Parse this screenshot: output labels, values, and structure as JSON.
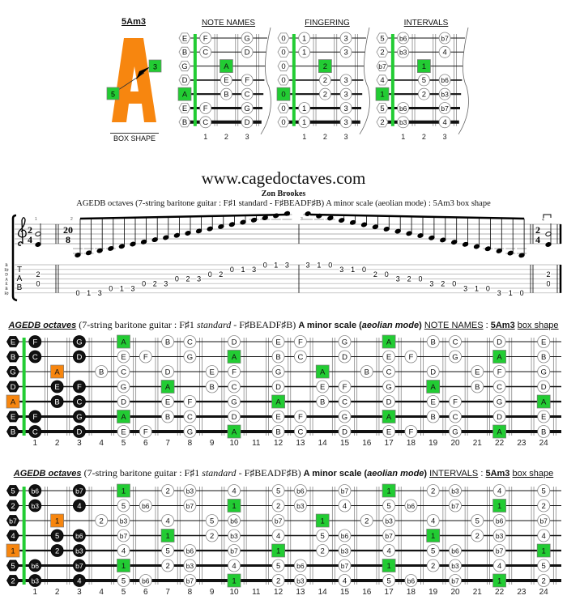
{
  "header": {
    "shape_name": "5Am3",
    "shape_letter": "A",
    "box_shape_label": "BOX SHAPE",
    "arrow_from": "5",
    "arrow_to": "3",
    "small_titles": [
      "NOTE NAMES",
      "FINGERING",
      "INTERVALS"
    ],
    "small_fret_numbers": [
      "1",
      "2",
      "3"
    ]
  },
  "site": {
    "url": "www.cagedoctaves.com",
    "author": "Zon Brookes",
    "subtitle": "AGEDB octaves (7-string baritone guitar : F♯1 standard - F♯BEADF♯B) A minor scale (aeolian mode) : 5Am3 box shape"
  },
  "colors": {
    "root_green": "#22cc33",
    "box_root_orange": "#f7860f",
    "box_note_black": "#111111",
    "nut_green": "#22cc33"
  },
  "tab": {
    "tuning_labels": [
      "B",
      "F♯",
      "D",
      "A",
      "E",
      "B",
      "F♯"
    ],
    "tab_letters": [
      "T",
      "A",
      "B"
    ],
    "time_signatures": {
      "m1": [
        "2",
        "4"
      ],
      "m2": [
        "20",
        "8"
      ],
      "m4": [
        "2",
        "4"
      ]
    },
    "measure_numbers": [
      "1",
      "2",
      "3",
      "4"
    ],
    "measures": [
      [
        [
          3,
          2
        ],
        [
          5,
          0
        ]
      ],
      [
        [
          7,
          0
        ],
        [
          7,
          1
        ],
        [
          7,
          3
        ],
        [
          6,
          0
        ],
        [
          6,
          1
        ],
        [
          6,
          3
        ],
        [
          5,
          0
        ],
        [
          5,
          2
        ],
        [
          5,
          3
        ],
        [
          4,
          0
        ],
        [
          4,
          2
        ],
        [
          4,
          3
        ],
        [
          3,
          0
        ],
        [
          3,
          2
        ],
        [
          2,
          0
        ],
        [
          2,
          1
        ],
        [
          2,
          3
        ],
        [
          1,
          0
        ],
        [
          1,
          1
        ],
        [
          1,
          3
        ]
      ],
      [
        [
          1,
          3
        ],
        [
          1,
          1
        ],
        [
          1,
          0
        ],
        [
          2,
          3
        ],
        [
          2,
          1
        ],
        [
          2,
          0
        ],
        [
          3,
          2
        ],
        [
          3,
          0
        ],
        [
          4,
          3
        ],
        [
          4,
          2
        ],
        [
          4,
          0
        ],
        [
          5,
          3
        ],
        [
          5,
          2
        ],
        [
          5,
          0
        ],
        [
          6,
          3
        ],
        [
          6,
          1
        ],
        [
          6,
          0
        ],
        [
          7,
          3
        ],
        [
          7,
          1
        ],
        [
          7,
          0
        ]
      ],
      [
        [
          3,
          2
        ],
        [
          5,
          0
        ]
      ]
    ]
  },
  "title_parts": {
    "name": "AGEDB octaves",
    "guitar": "(7-string baritone guitar : F♯1",
    "standard": "standard",
    "tuning": "- F♯BEADF♯B)",
    "scale": "A minor scale (",
    "mode": "aeolian mode",
    "close": ")",
    "sep": ":",
    "shape": "5Am3",
    "box": "box shape"
  },
  "fretboard": {
    "fret_numbers": [
      "1",
      "2",
      "3",
      "4",
      "5",
      "6",
      "7",
      "8",
      "9",
      "10",
      "11",
      "12",
      "13",
      "14",
      "15",
      "16",
      "17",
      "18",
      "19",
      "20",
      "21",
      "22",
      "23",
      "24"
    ],
    "strings": [
      {
        "frets": [
          0,
          1,
          3,
          5,
          7,
          8,
          10,
          12,
          13,
          15,
          17,
          19,
          20,
          22,
          24
        ],
        "styles": "bbbgnnnnnngnnnn"
      },
      {
        "frets": [
          0,
          1,
          3,
          5,
          6,
          8,
          10,
          12,
          13,
          15,
          17,
          18,
          20,
          22,
          24
        ],
        "styles": "bbbnnngnnnnnngn"
      },
      {
        "frets": [
          0,
          2,
          4,
          5,
          7,
          9,
          10,
          12,
          14,
          16,
          17,
          19,
          21,
          22,
          24
        ],
        "styles": "bonnnnnngnnnnnn"
      },
      {
        "frets": [
          0,
          2,
          3,
          5,
          7,
          9,
          10,
          12,
          14,
          15,
          17,
          19,
          21,
          22,
          24
        ],
        "styles": "bbbngnnnnnngnnn"
      },
      {
        "frets": [
          0,
          2,
          3,
          5,
          7,
          8,
          10,
          12,
          14,
          15,
          17,
          19,
          20,
          22,
          24
        ],
        "styles": "obbnnnngnnnnnng"
      },
      {
        "frets": [
          0,
          1,
          3,
          5,
          7,
          8,
          10,
          12,
          13,
          15,
          17,
          19,
          20,
          22,
          24
        ],
        "styles": "bbbgnnnnnngnnnn"
      },
      {
        "frets": [
          0,
          1,
          3,
          5,
          6,
          8,
          10,
          12,
          13,
          15,
          17,
          18,
          20,
          22,
          24
        ],
        "styles": "bbbnnngnnnnnngn"
      }
    ]
  },
  "note_names_board": {
    "view": "NOTE NAMES",
    "labels": [
      [
        "E",
        "F",
        "G",
        "A",
        "B",
        "C",
        "D",
        "E",
        "F",
        "G",
        "A",
        "B",
        "C",
        "D",
        "E"
      ],
      [
        "B",
        "C",
        "D",
        "E",
        "F",
        "G",
        "A",
        "B",
        "C",
        "D",
        "E",
        "F",
        "G",
        "A",
        "B"
      ],
      [
        "G",
        "A",
        "B",
        "C",
        "D",
        "E",
        "F",
        "G",
        "A",
        "B",
        "C",
        "D",
        "E",
        "F",
        "G"
      ],
      [
        "D",
        "E",
        "F",
        "G",
        "A",
        "B",
        "C",
        "D",
        "E",
        "F",
        "G",
        "A",
        "B",
        "C",
        "D"
      ],
      [
        "A",
        "B",
        "C",
        "D",
        "E",
        "F",
        "G",
        "A",
        "B",
        "C",
        "D",
        "E",
        "F",
        "G",
        "A"
      ],
      [
        "E",
        "F",
        "G",
        "A",
        "B",
        "C",
        "D",
        "E",
        "F",
        "G",
        "A",
        "B",
        "C",
        "D",
        "E"
      ],
      [
        "B",
        "C",
        "D",
        "E",
        "F",
        "G",
        "A",
        "B",
        "C",
        "D",
        "E",
        "F",
        "G",
        "A",
        "B"
      ]
    ]
  },
  "intervals_board": {
    "view": "INTERVALS",
    "labels": [
      [
        "5",
        "b6",
        "b7",
        "1",
        "2",
        "b3",
        "4",
        "5",
        "b6",
        "b7",
        "1",
        "2",
        "b3",
        "4",
        "5"
      ],
      [
        "2",
        "b3",
        "4",
        "5",
        "b6",
        "b7",
        "1",
        "2",
        "b3",
        "4",
        "5",
        "b6",
        "b7",
        "1",
        "2"
      ],
      [
        "b7",
        "1",
        "2",
        "b3",
        "4",
        "5",
        "b6",
        "b7",
        "1",
        "2",
        "b3",
        "4",
        "5",
        "b6",
        "b7"
      ],
      [
        "4",
        "5",
        "b6",
        "b7",
        "1",
        "2",
        "b3",
        "4",
        "5",
        "b6",
        "b7",
        "1",
        "2",
        "b3",
        "4"
      ],
      [
        "1",
        "2",
        "b3",
        "4",
        "5",
        "b6",
        "b7",
        "1",
        "2",
        "b3",
        "4",
        "5",
        "b6",
        "b7",
        "1"
      ],
      [
        "5",
        "b6",
        "b7",
        "1",
        "2",
        "b3",
        "4",
        "5",
        "b6",
        "b7",
        "1",
        "2",
        "b3",
        "4",
        "5"
      ],
      [
        "2",
        "b3",
        "4",
        "5",
        "b6",
        "b7",
        "1",
        "2",
        "b3",
        "4",
        "5",
        "b6",
        "b7",
        "1",
        "2"
      ]
    ]
  },
  "fingering_board": {
    "labels": [
      [
        "0",
        "1",
        "3"
      ],
      [
        "0",
        "1",
        "3"
      ],
      [
        "0",
        "2"
      ],
      [
        "0",
        "2",
        "3"
      ],
      [
        "0",
        "2",
        "3"
      ],
      [
        "0",
        "1",
        "3"
      ],
      [
        "0",
        "1",
        "3"
      ]
    ]
  }
}
